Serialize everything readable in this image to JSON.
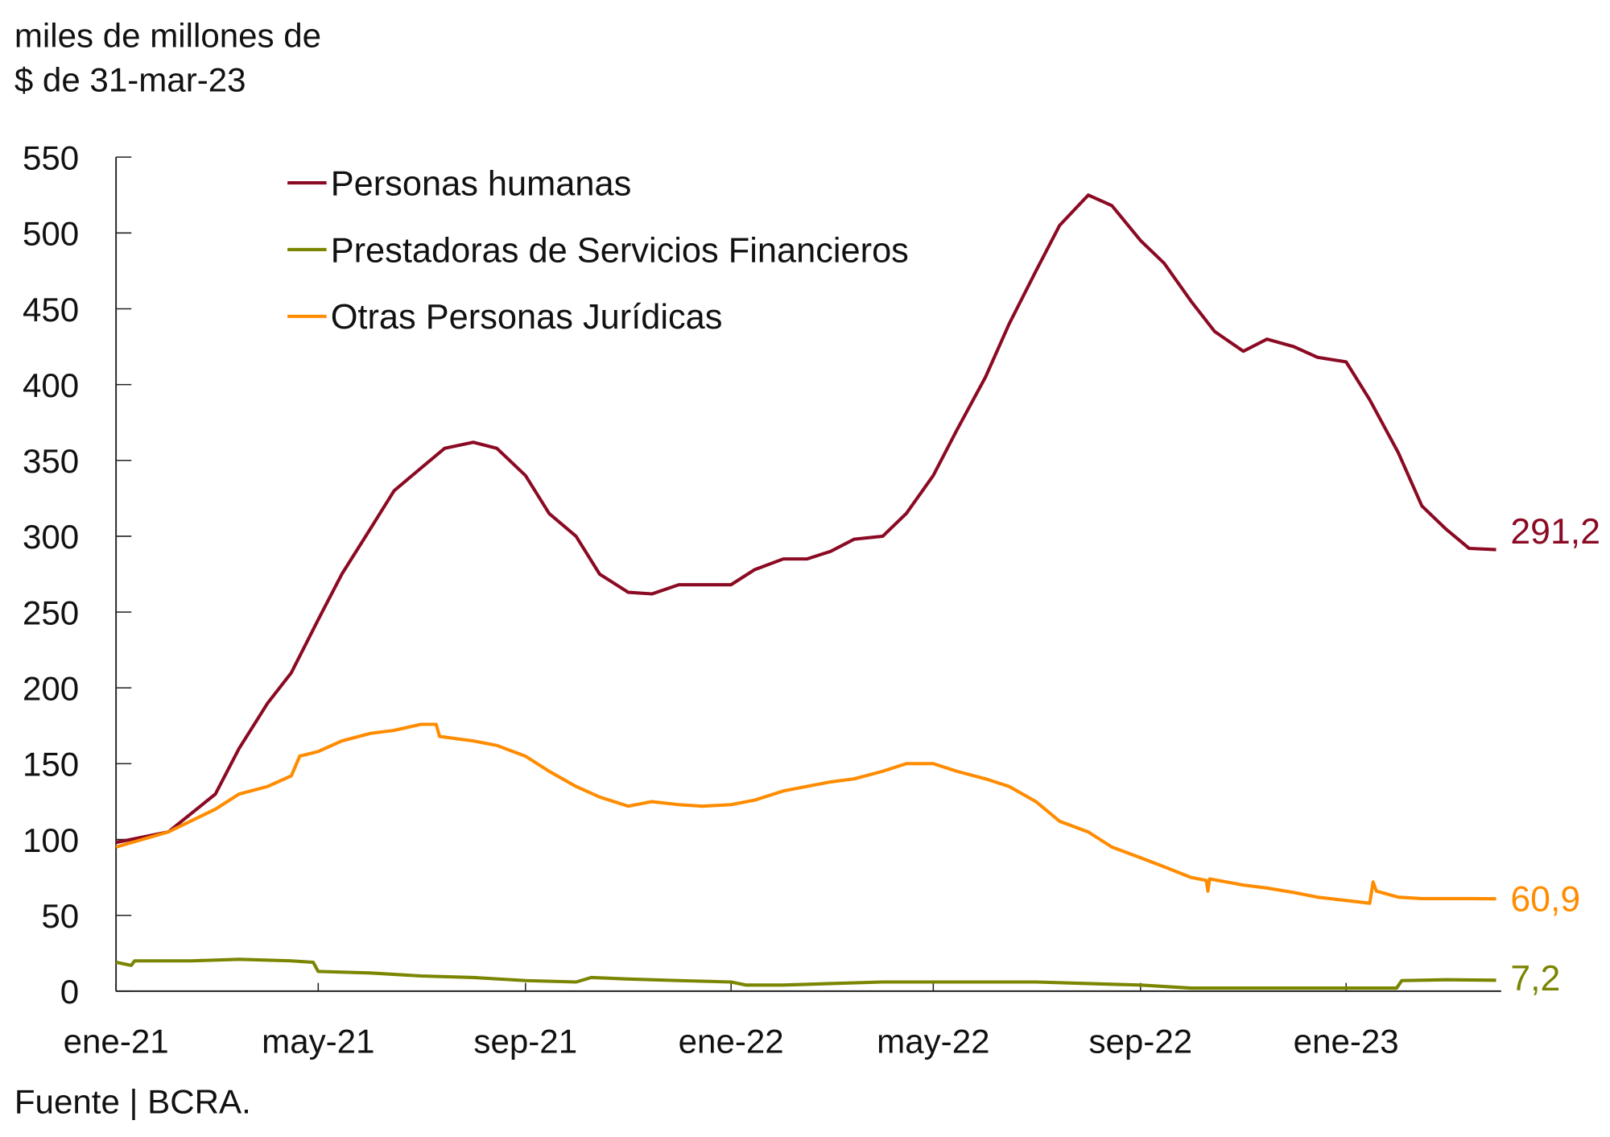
{
  "chart_data": {
    "type": "line",
    "title": "",
    "ylabel": "miles de millones de $ de 31-mar-23",
    "ylabel_lines": [
      "miles de millones de",
      "$ de 31-mar-23"
    ],
    "source": "Fuente | BCRA.",
    "ylim": [
      0,
      550
    ],
    "yticks": [
      "0",
      "50",
      "100",
      "150",
      "200",
      "250",
      "300",
      "350",
      "400",
      "450",
      "500",
      "550"
    ],
    "xticks": [
      {
        "label": "ene-21",
        "date": "2021-01-01"
      },
      {
        "label": "may-21",
        "date": "2021-05-01"
      },
      {
        "label": "sep-21",
        "date": "2021-09-01"
      },
      {
        "label": "ene-22",
        "date": "2022-01-01"
      },
      {
        "label": "may-22",
        "date": "2022-05-01"
      },
      {
        "label": "sep-22",
        "date": "2022-09-01"
      },
      {
        "label": "ene-23",
        "date": "2023-01-01"
      }
    ],
    "grid": false,
    "legend_position": "top-left",
    "series": [
      {
        "name": "Personas humanas",
        "color": "#8B0A23",
        "end_label": "291,2",
        "points": [
          [
            "2021-01-01",
            98
          ],
          [
            "2021-02-01",
            105
          ],
          [
            "2021-03-01",
            130
          ],
          [
            "2021-03-15",
            160
          ],
          [
            "2021-04-01",
            190
          ],
          [
            "2021-04-15",
            210
          ],
          [
            "2021-05-01",
            245
          ],
          [
            "2021-05-15",
            275
          ],
          [
            "2021-06-01",
            305
          ],
          [
            "2021-06-15",
            330
          ],
          [
            "2021-07-01",
            345
          ],
          [
            "2021-07-15",
            358
          ],
          [
            "2021-08-01",
            362
          ],
          [
            "2021-08-15",
            358
          ],
          [
            "2021-09-01",
            340
          ],
          [
            "2021-09-15",
            315
          ],
          [
            "2021-10-01",
            300
          ],
          [
            "2021-10-15",
            275
          ],
          [
            "2021-11-01",
            263
          ],
          [
            "2021-11-15",
            262
          ],
          [
            "2021-12-01",
            268
          ],
          [
            "2021-12-15",
            268
          ],
          [
            "2022-01-01",
            268
          ],
          [
            "2022-01-15",
            278
          ],
          [
            "2022-02-01",
            285
          ],
          [
            "2022-02-15",
            285
          ],
          [
            "2022-03-01",
            290
          ],
          [
            "2022-03-15",
            298
          ],
          [
            "2022-04-01",
            300
          ],
          [
            "2022-04-15",
            315
          ],
          [
            "2022-05-01",
            340
          ],
          [
            "2022-05-15",
            370
          ],
          [
            "2022-06-01",
            405
          ],
          [
            "2022-06-15",
            440
          ],
          [
            "2022-07-01",
            475
          ],
          [
            "2022-07-15",
            505
          ],
          [
            "2022-08-01",
            525
          ],
          [
            "2022-08-15",
            518
          ],
          [
            "2022-09-01",
            495
          ],
          [
            "2022-09-15",
            480
          ],
          [
            "2022-10-01",
            455
          ],
          [
            "2022-10-15",
            435
          ],
          [
            "2022-11-01",
            422
          ],
          [
            "2022-11-15",
            430
          ],
          [
            "2022-12-01",
            425
          ],
          [
            "2022-12-15",
            418
          ],
          [
            "2023-01-01",
            415
          ],
          [
            "2023-01-15",
            390
          ],
          [
            "2023-02-01",
            355
          ],
          [
            "2023-02-15",
            320
          ],
          [
            "2023-03-01",
            305
          ],
          [
            "2023-03-15",
            292
          ],
          [
            "2023-03-31",
            291.2
          ]
        ]
      },
      {
        "name": "Prestadoras de Servicios Financieros",
        "color": "#7A8500",
        "end_label": "7,2",
        "points": [
          [
            "2021-01-01",
            19
          ],
          [
            "2021-01-10",
            17
          ],
          [
            "2021-01-12",
            20
          ],
          [
            "2021-02-15",
            20
          ],
          [
            "2021-03-15",
            21
          ],
          [
            "2021-04-15",
            20
          ],
          [
            "2021-04-28",
            19
          ],
          [
            "2021-05-01",
            13
          ],
          [
            "2021-06-01",
            12
          ],
          [
            "2021-07-01",
            10
          ],
          [
            "2021-08-01",
            9
          ],
          [
            "2021-09-01",
            7
          ],
          [
            "2021-10-01",
            6
          ],
          [
            "2021-10-10",
            9
          ],
          [
            "2021-11-01",
            8
          ],
          [
            "2021-12-01",
            7
          ],
          [
            "2022-01-01",
            6
          ],
          [
            "2022-01-10",
            4
          ],
          [
            "2022-02-01",
            4
          ],
          [
            "2022-03-01",
            5
          ],
          [
            "2022-04-01",
            6
          ],
          [
            "2022-05-01",
            6
          ],
          [
            "2022-06-01",
            6
          ],
          [
            "2022-07-01",
            6
          ],
          [
            "2022-08-01",
            5
          ],
          [
            "2022-09-01",
            4
          ],
          [
            "2022-10-01",
            2
          ],
          [
            "2022-11-01",
            2
          ],
          [
            "2022-12-01",
            2
          ],
          [
            "2023-01-01",
            2
          ],
          [
            "2023-01-31",
            2
          ],
          [
            "2023-02-03",
            7
          ],
          [
            "2023-03-01",
            7.5
          ],
          [
            "2023-03-31",
            7.2
          ]
        ]
      },
      {
        "name": "Otras Personas Jurídicas",
        "color": "#FF8C00",
        "end_label": "60,9",
        "points": [
          [
            "2021-01-01",
            95
          ],
          [
            "2021-02-01",
            105
          ],
          [
            "2021-03-01",
            120
          ],
          [
            "2021-03-15",
            130
          ],
          [
            "2021-04-01",
            135
          ],
          [
            "2021-04-15",
            142
          ],
          [
            "2021-04-20",
            155
          ],
          [
            "2021-05-01",
            158
          ],
          [
            "2021-05-15",
            165
          ],
          [
            "2021-06-01",
            170
          ],
          [
            "2021-06-15",
            172
          ],
          [
            "2021-07-01",
            176
          ],
          [
            "2021-07-10",
            176
          ],
          [
            "2021-07-12",
            168
          ],
          [
            "2021-08-01",
            165
          ],
          [
            "2021-08-15",
            162
          ],
          [
            "2021-09-01",
            155
          ],
          [
            "2021-09-15",
            145
          ],
          [
            "2021-10-01",
            135
          ],
          [
            "2021-10-15",
            128
          ],
          [
            "2021-11-01",
            122
          ],
          [
            "2021-11-15",
            125
          ],
          [
            "2021-12-01",
            123
          ],
          [
            "2021-12-15",
            122
          ],
          [
            "2022-01-01",
            123
          ],
          [
            "2022-01-15",
            126
          ],
          [
            "2022-02-01",
            132
          ],
          [
            "2022-02-15",
            135
          ],
          [
            "2022-03-01",
            138
          ],
          [
            "2022-03-15",
            140
          ],
          [
            "2022-04-01",
            145
          ],
          [
            "2022-04-15",
            150
          ],
          [
            "2022-05-01",
            150
          ],
          [
            "2022-05-15",
            145
          ],
          [
            "2022-06-01",
            140
          ],
          [
            "2022-06-15",
            135
          ],
          [
            "2022-07-01",
            125
          ],
          [
            "2022-07-15",
            112
          ],
          [
            "2022-08-01",
            105
          ],
          [
            "2022-08-15",
            95
          ],
          [
            "2022-09-01",
            88
          ],
          [
            "2022-09-15",
            82
          ],
          [
            "2022-10-01",
            75
          ],
          [
            "2022-10-10",
            73
          ],
          [
            "2022-10-11",
            66
          ],
          [
            "2022-10-12",
            74
          ],
          [
            "2022-11-01",
            70
          ],
          [
            "2022-11-15",
            68
          ],
          [
            "2022-12-01",
            65
          ],
          [
            "2022-12-15",
            62
          ],
          [
            "2023-01-15",
            58
          ],
          [
            "2023-01-17",
            72
          ],
          [
            "2023-01-19",
            66
          ],
          [
            "2023-02-01",
            62
          ],
          [
            "2023-02-15",
            61
          ],
          [
            "2023-03-01",
            61
          ],
          [
            "2023-03-15",
            61
          ],
          [
            "2023-03-31",
            60.9
          ]
        ]
      }
    ]
  }
}
